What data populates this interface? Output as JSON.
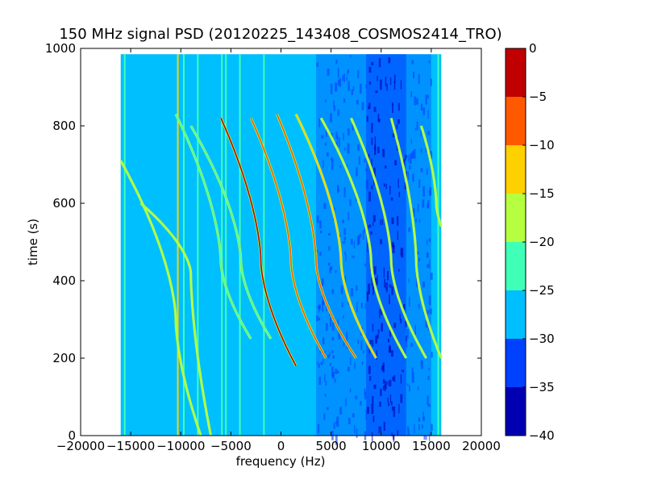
{
  "chart_data": {
    "type": "heatmap",
    "title": "150 MHz signal PSD (20120225_143408_COSMOS2414_TRO)",
    "xlabel": "frequency (Hz)",
    "ylabel": "time (s)",
    "xlim": [
      -20000,
      20000
    ],
    "ylim": [
      0,
      1000
    ],
    "x_ticks": [
      -20000,
      -15000,
      -10000,
      -5000,
      0,
      5000,
      10000,
      15000,
      20000
    ],
    "x_tick_labels": [
      "−20000",
      "−15000",
      "−10000",
      "−5000",
      "0",
      "5000",
      "10000",
      "15000",
      "20000"
    ],
    "y_ticks": [
      0,
      200,
      400,
      600,
      800,
      1000
    ],
    "y_tick_labels": [
      "0",
      "200",
      "400",
      "600",
      "800",
      "1000"
    ],
    "data_extent": {
      "x": [
        -16000,
        16000
      ],
      "y": [
        0,
        985
      ]
    },
    "background_level": -28,
    "quiet_region": {
      "x": [
        3500,
        15000
      ],
      "level": -33,
      "core_x": [
        8500,
        12500
      ],
      "core_level": -36
    },
    "colormap": "jet",
    "colorbar": {
      "range": [
        -40,
        0
      ],
      "levels": [
        {
          "from": -40,
          "to": -35,
          "color": "#0000b2"
        },
        {
          "from": -35,
          "to": -30,
          "color": "#0040ff"
        },
        {
          "from": -30,
          "to": -25,
          "color": "#00bfff"
        },
        {
          "from": -25,
          "to": -20,
          "color": "#40ffb6"
        },
        {
          "from": -20,
          "to": -15,
          "color": "#b6ff40"
        },
        {
          "from": -15,
          "to": -10,
          "color": "#ffd000"
        },
        {
          "from": -10,
          "to": -5,
          "color": "#ff5900"
        },
        {
          "from": -5,
          "to": 0,
          "color": "#c00000"
        }
      ],
      "ticks": [
        0,
        -5,
        -10,
        -15,
        -20,
        -25,
        -30,
        -35,
        -40
      ],
      "tick_labels": [
        "0",
        "−5",
        "−10",
        "−15",
        "−20",
        "−25",
        "−30",
        "−35",
        "−40"
      ]
    },
    "vertical_lines": [
      {
        "x": -15600,
        "level": -24
      },
      {
        "x": -10300,
        "level": -15
      },
      {
        "x": -9700,
        "level": -24
      },
      {
        "x": -8300,
        "level": -24
      },
      {
        "x": -5900,
        "level": -24
      },
      {
        "x": -5500,
        "level": -24
      },
      {
        "x": -4100,
        "level": -24
      },
      {
        "x": -2200,
        "level": -27
      },
      {
        "x": -1700,
        "level": -22
      },
      {
        "x": 15700,
        "level": -24
      }
    ],
    "doppler_tracks": [
      {
        "x0": -2000,
        "x_top": -6000,
        "x_bottom": 1500,
        "t_center": 450,
        "t_top": 820,
        "t_bottom": 180,
        "level": -3
      },
      {
        "x0": 1000,
        "x_top": -3000,
        "x_bottom": 4500,
        "t_center": 450,
        "t_top": 820,
        "t_bottom": 200,
        "level": -6
      },
      {
        "x0": 3500,
        "x_top": -400,
        "x_bottom": 7500,
        "t_center": 450,
        "t_top": 830,
        "t_bottom": 200,
        "level": -6
      },
      {
        "x0": 6000,
        "x_top": 1500,
        "x_bottom": 9500,
        "t_center": 450,
        "t_top": 830,
        "t_bottom": 200,
        "level": -12
      },
      {
        "x0": 9000,
        "x_top": 4000,
        "x_bottom": 12500,
        "t_center": 450,
        "t_top": 820,
        "t_bottom": 200,
        "level": -17
      },
      {
        "x0": 11000,
        "x_top": 7000,
        "x_bottom": 14500,
        "t_center": 450,
        "t_top": 820,
        "t_bottom": 200,
        "level": -18
      },
      {
        "x0": 13500,
        "x_top": 11000,
        "x_bottom": 16000,
        "t_center": 450,
        "t_top": 820,
        "t_bottom": 200,
        "level": -20
      },
      {
        "x0": 15500,
        "x_top": 14000,
        "x_bottom": 16000,
        "t_center": 600,
        "t_top": 800,
        "t_bottom": 540,
        "level": -17
      },
      {
        "x0": -9000,
        "x_top": -14000,
        "x_bottom": -7000,
        "t_center": 420,
        "t_top": 600,
        "t_bottom": 0,
        "level": -18
      },
      {
        "x0": -10500,
        "x_top": -16000,
        "x_bottom": -8000,
        "t_center": 300,
        "t_top": 710,
        "t_bottom": 0,
        "level": -17
      },
      {
        "x0": -4000,
        "x_top": -9000,
        "x_bottom": -1000,
        "t_center": 450,
        "t_top": 800,
        "t_bottom": 250,
        "level": -22
      },
      {
        "x0": -6000,
        "x_top": -10500,
        "x_bottom": -3000,
        "t_center": 450,
        "t_top": 830,
        "t_bottom": 250,
        "level": -22
      }
    ]
  }
}
